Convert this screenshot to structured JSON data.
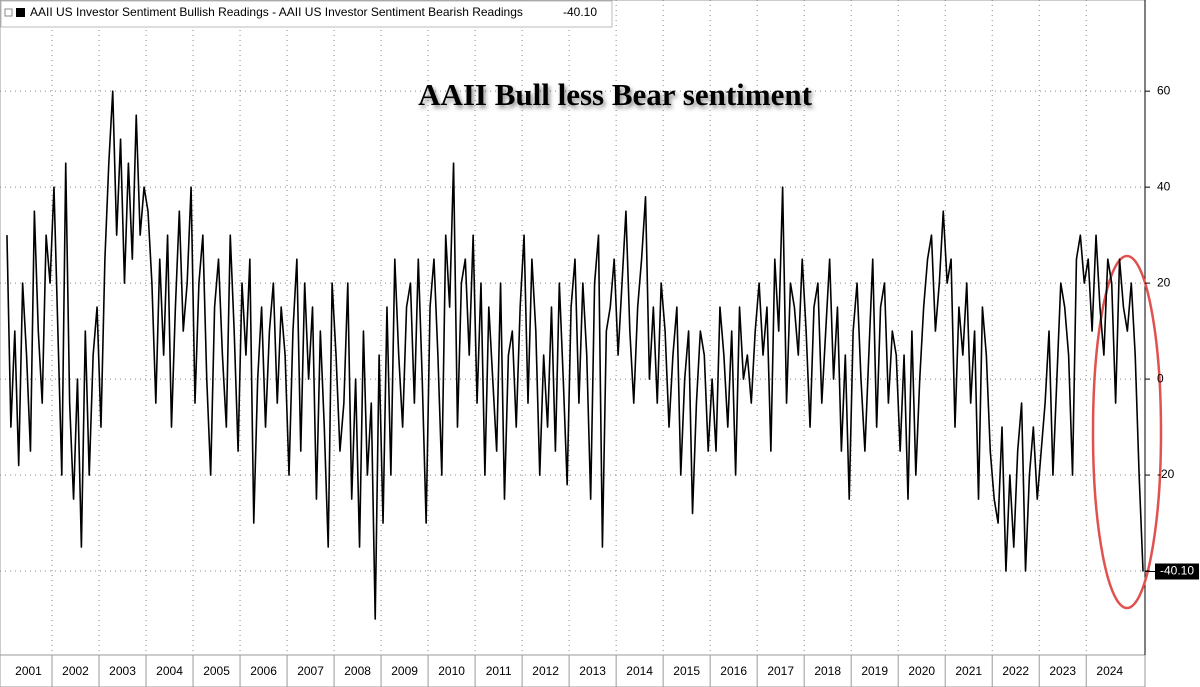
{
  "chart_data": {
    "type": "line",
    "title": "AAII Bull less Bear sentiment",
    "series": [
      {
        "name": "AAII US Investor Sentiment Bullish Readings - AAII US Investor Sentiment Bearish Readings",
        "color": "#000000",
        "last_value_label": "-40.10",
        "values": [
          30,
          -10,
          10,
          -18,
          20,
          5,
          -15,
          35,
          10,
          -5,
          30,
          20,
          40,
          10,
          -20,
          45,
          -5,
          -25,
          0,
          -35,
          10,
          -20,
          5,
          15,
          -10,
          25,
          45,
          60,
          30,
          50,
          20,
          45,
          25,
          55,
          30,
          40,
          35,
          20,
          -5,
          25,
          5,
          30,
          -10,
          15,
          35,
          10,
          20,
          40,
          -5,
          20,
          30,
          0,
          -20,
          15,
          25,
          5,
          -10,
          30,
          10,
          -15,
          20,
          5,
          25,
          -30,
          0,
          15,
          -10,
          10,
          20,
          -5,
          15,
          5,
          -20,
          10,
          25,
          -15,
          20,
          0,
          15,
          -25,
          10,
          -10,
          -35,
          20,
          5,
          -15,
          -5,
          20,
          -25,
          0,
          -35,
          10,
          -20,
          -5,
          -50,
          5,
          -30,
          15,
          -20,
          25,
          5,
          -10,
          15,
          20,
          -5,
          25,
          0,
          -30,
          15,
          25,
          5,
          -20,
          30,
          15,
          45,
          -10,
          20,
          25,
          5,
          30,
          -5,
          20,
          -20,
          15,
          0,
          -15,
          20,
          -25,
          5,
          10,
          -10,
          15,
          30,
          -5,
          25,
          10,
          -20,
          5,
          -10,
          15,
          -15,
          20,
          0,
          -22,
          15,
          25,
          -5,
          20,
          5,
          -25,
          20,
          30,
          -35,
          10,
          15,
          25,
          5,
          20,
          35,
          10,
          -5,
          15,
          25,
          38,
          0,
          15,
          -5,
          20,
          10,
          -10,
          5,
          15,
          -20,
          0,
          10,
          -28,
          -5,
          10,
          5,
          -15,
          0,
          -15,
          15,
          5,
          -10,
          10,
          -20,
          15,
          0,
          5,
          -5,
          10,
          20,
          5,
          15,
          -15,
          25,
          10,
          40,
          -5,
          20,
          15,
          5,
          25,
          10,
          -10,
          15,
          20,
          -5,
          10,
          25,
          0,
          15,
          -15,
          5,
          -25,
          10,
          20,
          0,
          -15,
          5,
          25,
          -10,
          15,
          20,
          -5,
          10,
          5,
          -15,
          5,
          -25,
          10,
          -20,
          0,
          15,
          25,
          30,
          10,
          20,
          35,
          20,
          25,
          -10,
          15,
          5,
          20,
          -5,
          10,
          -25,
          15,
          5,
          -15,
          -25,
          -30,
          -10,
          -40,
          -20,
          -35,
          -15,
          -5,
          -40,
          -20,
          -10,
          -25,
          -15,
          -5,
          10,
          -20,
          0,
          20,
          15,
          5,
          -20,
          25,
          30,
          20,
          25,
          10,
          30,
          15,
          5,
          25,
          20,
          -5,
          25,
          15,
          10,
          20,
          5,
          -20,
          -40.1
        ]
      }
    ],
    "categories": [
      "2001",
      null,
      null,
      null,
      null,
      null,
      null,
      null,
      null,
      null,
      null,
      null,
      "2002",
      null,
      null,
      null,
      null,
      null,
      null,
      null,
      null,
      null,
      null,
      null,
      "2003",
      null,
      null,
      null,
      null,
      null,
      null,
      null,
      null,
      null,
      null,
      null,
      "2004",
      null,
      null,
      null,
      null,
      null,
      null,
      null,
      null,
      null,
      null,
      null,
      "2005",
      null,
      null,
      null,
      null,
      null,
      null,
      null,
      null,
      null,
      null,
      null,
      "2006",
      null,
      null,
      null,
      null,
      null,
      null,
      null,
      null,
      null,
      null,
      null,
      "2007",
      null,
      null,
      null,
      null,
      null,
      null,
      null,
      null,
      null,
      null,
      null,
      "2008",
      null,
      null,
      null,
      null,
      null,
      null,
      null,
      null,
      null,
      null,
      null,
      "2009",
      null,
      null,
      null,
      null,
      null,
      null,
      null,
      null,
      null,
      null,
      null,
      "2010",
      null,
      null,
      null,
      null,
      null,
      null,
      null,
      null,
      null,
      null,
      null,
      "2011",
      null,
      null,
      null,
      null,
      null,
      null,
      null,
      null,
      null,
      null,
      null,
      "2012",
      null,
      null,
      null,
      null,
      null,
      null,
      null,
      null,
      null,
      null,
      null,
      "2013",
      null,
      null,
      null,
      null,
      null,
      null,
      null,
      null,
      null,
      null,
      null,
      "2014",
      null,
      null,
      null,
      null,
      null,
      null,
      null,
      null,
      null,
      null,
      null,
      "2015",
      null,
      null,
      null,
      null,
      null,
      null,
      null,
      null,
      null,
      null,
      null,
      "2016",
      null,
      null,
      null,
      null,
      null,
      null,
      null,
      null,
      null,
      null,
      null,
      "2017",
      null,
      null,
      null,
      null,
      null,
      null,
      null,
      null,
      null,
      null,
      null,
      "2018",
      null,
      null,
      null,
      null,
      null,
      null,
      null,
      null,
      null,
      null,
      null,
      "2019",
      null,
      null,
      null,
      null,
      null,
      null,
      null,
      null,
      null,
      null,
      null,
      "2020",
      null,
      null,
      null,
      null,
      null,
      null,
      null,
      null,
      null,
      null,
      null,
      "2021",
      null,
      null,
      null,
      null,
      null,
      null,
      null,
      null,
      null,
      null,
      null,
      "2022",
      null,
      null,
      null,
      null,
      null,
      null,
      null,
      null,
      null,
      null,
      null,
      "2023",
      null,
      null,
      null,
      null,
      null,
      null,
      null,
      null,
      null,
      null,
      null,
      "2024",
      null,
      null,
      null,
      null,
      null,
      null,
      null,
      null,
      null,
      null,
      null,
      null,
      null,
      null
    ],
    "ylim": [
      -57.5,
      79
    ],
    "yticks": [
      -40,
      -20,
      0,
      20,
      40,
      60
    ],
    "grid": true
  }
}
